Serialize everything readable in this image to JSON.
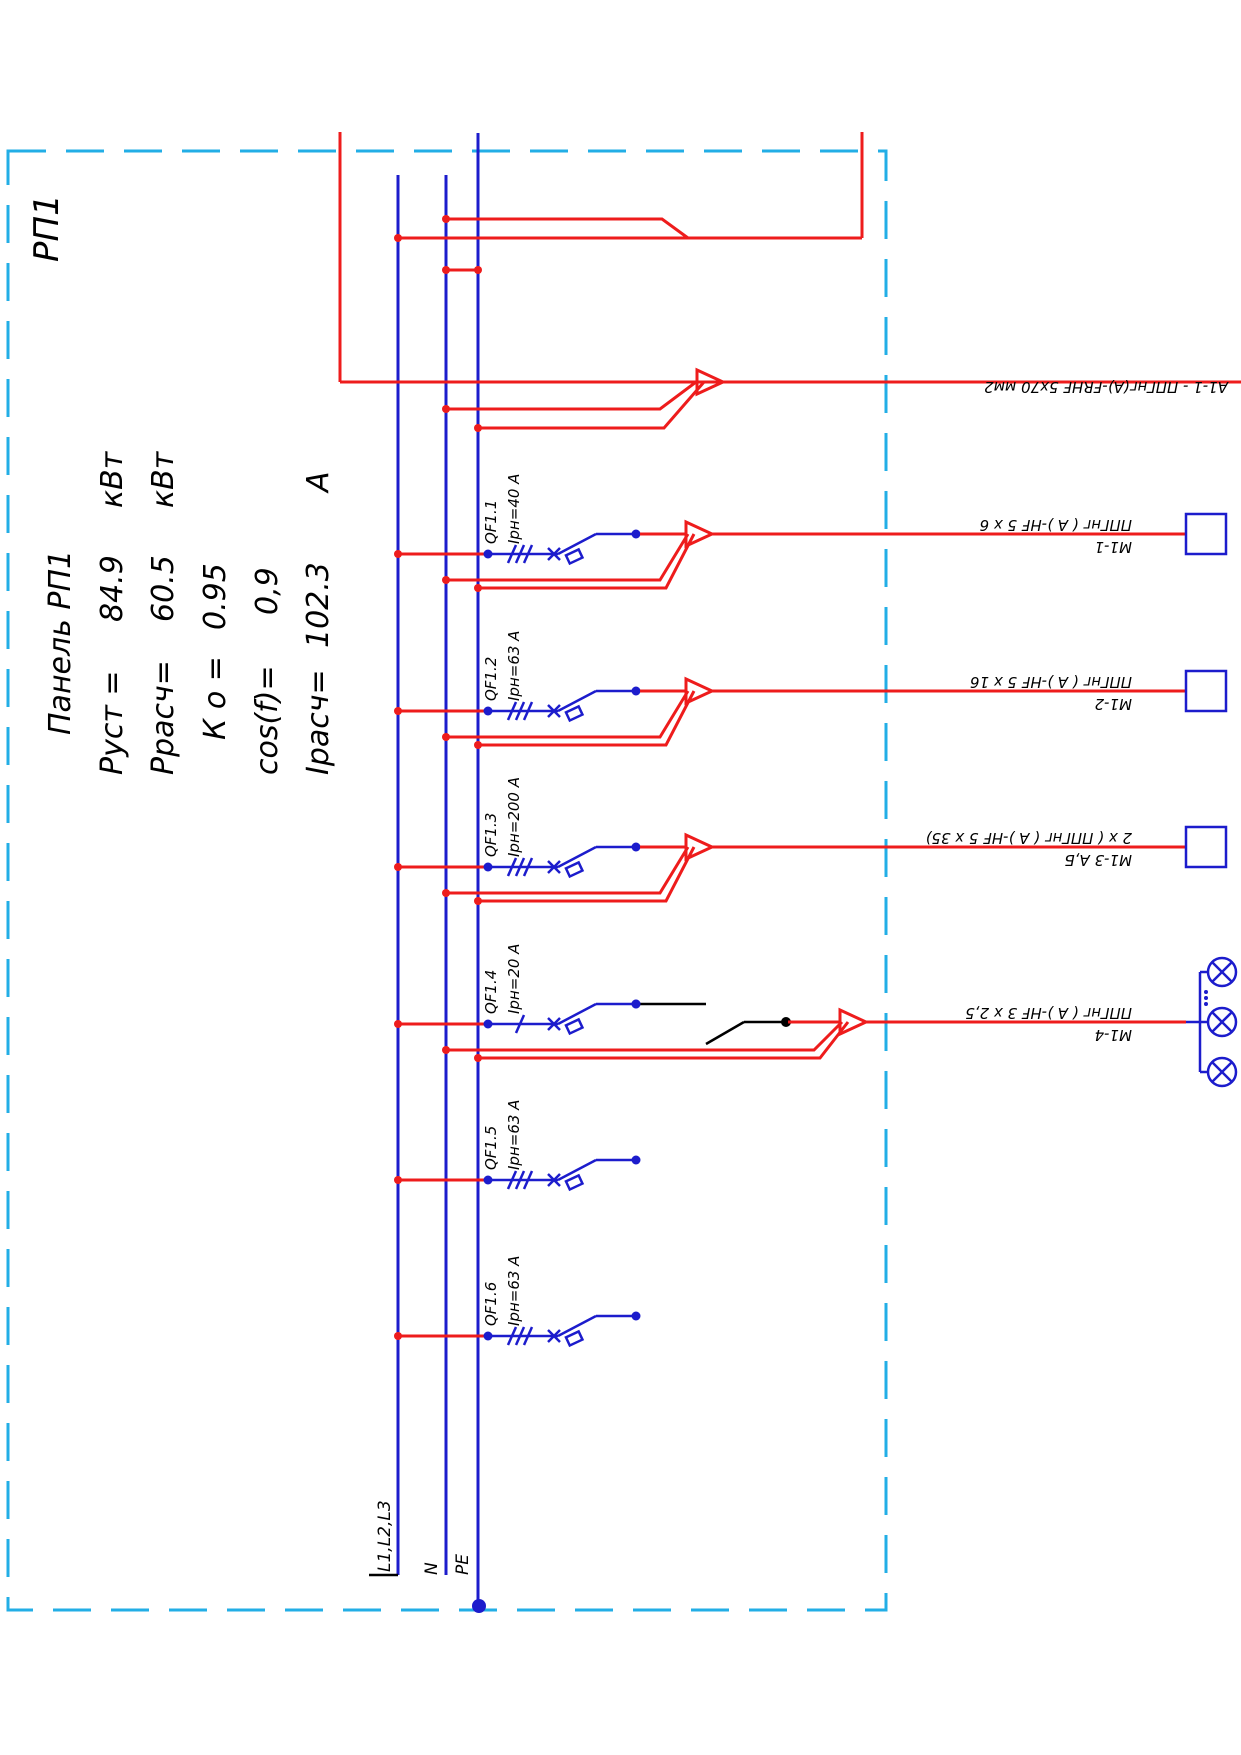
{
  "panel": {
    "name": "РП1",
    "summary": {
      "title": "Панель  РП1",
      "rows": [
        {
          "label": "Руст =",
          "value": "84.9",
          "unit": "кВт"
        },
        {
          "label": "Ррасч=",
          "value": "60.5",
          "unit": "кВт"
        },
        {
          "label": "К о =",
          "value": "0.95",
          "unit": ""
        },
        {
          "label": "cos(f)=",
          "value": "0,9",
          "unit": ""
        },
        {
          "label": "Ірасч=",
          "value": "102.3",
          "unit": "А"
        }
      ]
    },
    "buses": {
      "phase": "L1,L2,L3",
      "neutral": "N",
      "earth": "PE"
    },
    "input": {
      "cable": "А1-1  -  ППГнг(А)-FRHF 5х70 мм2"
    },
    "breakers": [
      {
        "id": "QF1.1",
        "rating": "Iрн=40 А",
        "cable_id": "М1-1",
        "cable": "ППГнг ( А )-НF 5 х 6",
        "load": "motor"
      },
      {
        "id": "QF1.2",
        "rating": "Iрн=63 А",
        "cable_id": "М1-2",
        "cable": "ППГнг ( А )-НF 5 х 16",
        "load": "motor"
      },
      {
        "id": "QF1.3",
        "rating": "Iрн=200 А",
        "cable_id": "М1-3  А,Б",
        "cable": "2  х  ( ППГнг ( А )-НF 5 х 35)",
        "load": "motor"
      },
      {
        "id": "QF1.4",
        "rating": "Iрн=20 А",
        "cable_id": "М1-4",
        "cable": "ППГнг ( А )-НF 3 х 2,5",
        "load": "lamps"
      },
      {
        "id": "QF1.5",
        "rating": "Iрн=63 А",
        "cable_id": "",
        "cable": "",
        "load": "none"
      },
      {
        "id": "QF1.6",
        "rating": "Iрн=63 А",
        "cable_id": "",
        "cable": "",
        "load": "none"
      }
    ]
  },
  "colors": {
    "phase": "#ee1c1c",
    "bus": "#1c1ccc",
    "frame": "#22aee6"
  },
  "icons": [
    "circuit-breaker-icon",
    "motor-box-icon",
    "lamp-icon",
    "cable-arrow-icon"
  ]
}
